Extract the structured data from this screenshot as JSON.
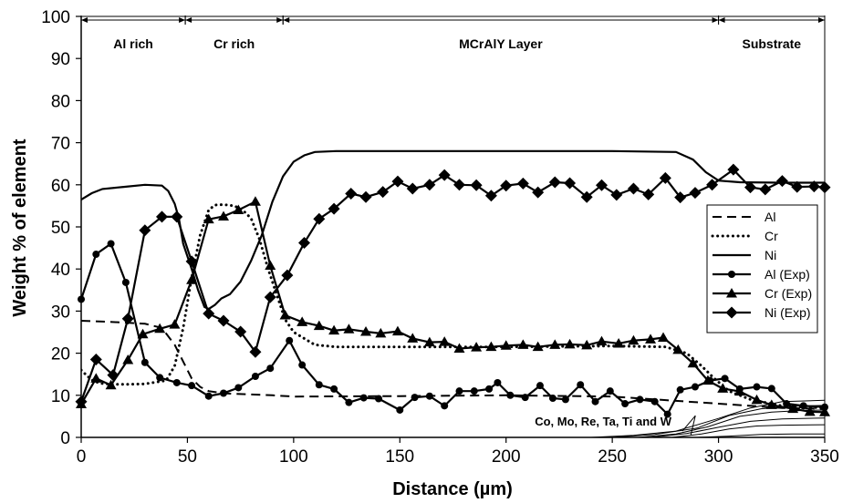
{
  "chart_data": {
    "type": "line",
    "title": "",
    "xlabel": "Distance (µm)",
    "ylabel": "Weight % of element",
    "xlim": [
      0,
      350
    ],
    "ylim": [
      0,
      100
    ],
    "x_ticks": [
      "0",
      "50",
      "100",
      "150",
      "200",
      "250",
      "300",
      "350"
    ],
    "y_ticks": [
      "0",
      "10",
      "20",
      "30",
      "40",
      "50",
      "60",
      "70",
      "80",
      "90",
      "100"
    ],
    "grid": false,
    "legend_position": "right",
    "regions": [
      {
        "label": "Al rich",
        "x_start": 0,
        "x_end": 49
      },
      {
        "label": "Cr rich",
        "x_start": 49,
        "x_end": 95
      },
      {
        "label": "MCrAlY Layer",
        "x_start": 95,
        "x_end": 300
      },
      {
        "label": "Substrate",
        "x_start": 300,
        "x_end": 350
      }
    ],
    "annotation": {
      "text": "Co, Mo, Re, Ta, Ti and W",
      "x": 162,
      "y": 3,
      "arrow_to": [
        [
          283,
          1.5
        ],
        [
          287,
          0.6
        ]
      ]
    },
    "series": [
      {
        "name": "Al",
        "style": "dashed",
        "marker": "none",
        "x": [
          0,
          5,
          10,
          20,
          30,
          38,
          44,
          48,
          52,
          56,
          60,
          65,
          70,
          80,
          90,
          100,
          150,
          200,
          250,
          300,
          330,
          350
        ],
        "y": [
          27.7,
          27.6,
          27.5,
          27.3,
          27.0,
          26.0,
          22.0,
          18.0,
          14.0,
          12.0,
          11.0,
          10.6,
          10.4,
          10.2,
          10.0,
          9.7,
          9.8,
          10.0,
          9.7,
          8.0,
          7.0,
          6.8
        ]
      },
      {
        "name": "Cr",
        "style": "dotted",
        "marker": "none",
        "x": [
          0,
          3,
          6,
          10,
          15,
          20,
          30,
          40,
          44,
          48,
          52,
          56,
          60,
          63,
          67,
          72,
          76,
          80,
          84,
          88,
          92,
          96,
          100,
          110,
          120,
          150,
          200,
          250,
          275,
          285,
          292,
          298,
          305,
          315,
          330,
          350
        ],
        "y": [
          16.0,
          14.5,
          13.3,
          12.8,
          12.6,
          12.6,
          12.7,
          13.5,
          17.0,
          26.0,
          38.0,
          48.0,
          54.0,
          55.2,
          55.3,
          55.0,
          54.0,
          52.0,
          47.0,
          40.0,
          34.0,
          28.0,
          25.0,
          22.0,
          21.5,
          21.5,
          21.5,
          21.7,
          21.5,
          20.0,
          17.0,
          14.0,
          11.0,
          9.0,
          7.5,
          7.0
        ]
      },
      {
        "name": "Ni",
        "style": "solid",
        "marker": "none",
        "x": [
          0,
          5,
          10,
          20,
          30,
          38,
          41,
          44,
          46,
          48,
          52,
          55,
          58,
          60,
          63,
          66,
          70,
          75,
          80,
          85,
          90,
          95,
          100,
          105,
          110,
          120,
          150,
          200,
          250,
          280,
          288,
          294,
          300,
          310,
          330,
          350
        ],
        "y": [
          56.5,
          58.0,
          59.0,
          59.5,
          60.0,
          59.8,
          58.5,
          55.5,
          52.0,
          46.0,
          40.0,
          35.0,
          31.0,
          30.5,
          31.5,
          33.0,
          34.0,
          37.0,
          42.0,
          48.0,
          56.0,
          62.0,
          65.5,
          67.0,
          67.8,
          68.0,
          68.0,
          68.0,
          68.0,
          67.8,
          66.0,
          63.0,
          61.0,
          60.6,
          60.5,
          60.5
        ]
      },
      {
        "name": "Al (Exp)",
        "style": "solid",
        "marker": "circle",
        "x": [
          0,
          7,
          14,
          21,
          30,
          37,
          45,
          52,
          60,
          67,
          74,
          82,
          89,
          98,
          104,
          112,
          119,
          126,
          133,
          140,
          150,
          157,
          164,
          171,
          178,
          185,
          192,
          196,
          202,
          209,
          216,
          222,
          228,
          235,
          242,
          249,
          256,
          263,
          270,
          276,
          282,
          289,
          296,
          303,
          310,
          318,
          325,
          332,
          340,
          350
        ],
        "y": [
          32.8,
          43.5,
          46.0,
          36.8,
          17.8,
          14.2,
          13.0,
          12.3,
          9.8,
          10.5,
          11.8,
          14.5,
          16.4,
          23.0,
          17.2,
          12.5,
          11.5,
          8.3,
          9.4,
          9.2,
          6.5,
          9.5,
          9.8,
          7.5,
          11.0,
          11.0,
          11.5,
          13.0,
          10.0,
          9.5,
          12.3,
          9.3,
          9.0,
          12.5,
          8.5,
          11.0,
          8.0,
          9.0,
          8.5,
          5.5,
          11.3,
          12.0,
          13.5,
          14.0,
          11.5,
          12.0,
          11.6,
          8.0,
          7.5,
          7.2
        ]
      },
      {
        "name": "Cr (Exp)",
        "style": "solid",
        "marker": "triangle",
        "x": [
          0,
          7,
          14,
          22,
          29,
          37,
          44,
          52,
          60,
          67,
          74,
          82,
          89,
          96,
          104,
          112,
          119,
          126,
          134,
          141,
          149,
          156,
          164,
          171,
          178,
          186,
          193,
          200,
          208,
          215,
          223,
          230,
          238,
          245,
          253,
          260,
          268,
          274,
          281,
          288,
          295,
          302,
          310,
          318,
          325,
          335,
          343,
          350
        ],
        "y": [
          7.9,
          14.0,
          12.4,
          18.4,
          24.5,
          25.8,
          26.8,
          37.4,
          51.8,
          52.5,
          54.0,
          56.0,
          40.8,
          29.0,
          27.4,
          26.5,
          25.4,
          25.7,
          25.1,
          24.7,
          25.2,
          23.5,
          22.6,
          22.7,
          21.1,
          21.4,
          21.5,
          21.8,
          22.0,
          21.5,
          22.0,
          22.1,
          21.9,
          22.8,
          22.3,
          23.0,
          23.3,
          23.7,
          20.8,
          17.6,
          13.5,
          11.6,
          10.9,
          8.9,
          7.7,
          6.8,
          6.1,
          6.0
        ]
      },
      {
        "name": "Ni (Exp)",
        "style": "solid",
        "marker": "diamond",
        "x": [
          0,
          7,
          15,
          22,
          30,
          38,
          45,
          52,
          60,
          67,
          75,
          82,
          89,
          97,
          105,
          112,
          119,
          127,
          134,
          142,
          149,
          156,
          164,
          171,
          178,
          186,
          193,
          200,
          208,
          215,
          223,
          230,
          238,
          245,
          252,
          260,
          267,
          275,
          282,
          289,
          297,
          307,
          315,
          322,
          330,
          337,
          345,
          350
        ],
        "y": [
          8.5,
          18.5,
          14.8,
          28.2,
          49.2,
          52.4,
          52.4,
          41.8,
          29.4,
          27.7,
          25.1,
          20.3,
          33.3,
          38.5,
          46.2,
          51.9,
          54.3,
          57.9,
          57.1,
          58.3,
          60.8,
          59.1,
          60.0,
          62.3,
          60.0,
          59.9,
          57.4,
          59.8,
          60.3,
          58.2,
          60.6,
          60.4,
          57.1,
          59.9,
          57.6,
          59.1,
          57.7,
          61.6,
          57.0,
          58.1,
          60.0,
          63.6,
          59.4,
          58.9,
          60.9,
          59.5,
          59.6,
          59.4
        ]
      },
      {
        "name": "",
        "style": "thin",
        "marker": "none",
        "x": [
          0,
          240,
          260,
          280,
          300,
          315,
          330,
          350
        ],
        "y": [
          0,
          0,
          0.5,
          1.5,
          4.5,
          7.0,
          8.5,
          8.8
        ]
      },
      {
        "name": "",
        "style": "thin",
        "marker": "none",
        "x": [
          0,
          250,
          270,
          290,
          305,
          320,
          335,
          350
        ],
        "y": [
          0,
          0,
          0.7,
          2.2,
          5.2,
          6.8,
          7.4,
          7.6
        ]
      },
      {
        "name": "",
        "style": "thin",
        "marker": "none",
        "x": [
          0,
          262,
          280,
          295,
          310,
          325,
          340,
          350
        ],
        "y": [
          0,
          0,
          0.8,
          2.5,
          5.0,
          6.0,
          6.4,
          6.5
        ]
      },
      {
        "name": "",
        "style": "thin",
        "marker": "none",
        "x": [
          0,
          268,
          285,
          300,
          315,
          330,
          350
        ],
        "y": [
          0,
          0,
          0.9,
          2.4,
          3.8,
          4.4,
          4.6
        ]
      },
      {
        "name": "",
        "style": "thin",
        "marker": "none",
        "x": [
          0,
          278,
          292,
          305,
          318,
          330,
          350
        ],
        "y": [
          0,
          0,
          0.8,
          2.0,
          2.7,
          2.9,
          3.0
        ]
      },
      {
        "name": "",
        "style": "thin",
        "marker": "none",
        "x": [
          0,
          290,
          305,
          320,
          335,
          350
        ],
        "y": [
          0,
          0,
          0.3,
          0.7,
          0.8,
          0.8
        ]
      }
    ]
  }
}
